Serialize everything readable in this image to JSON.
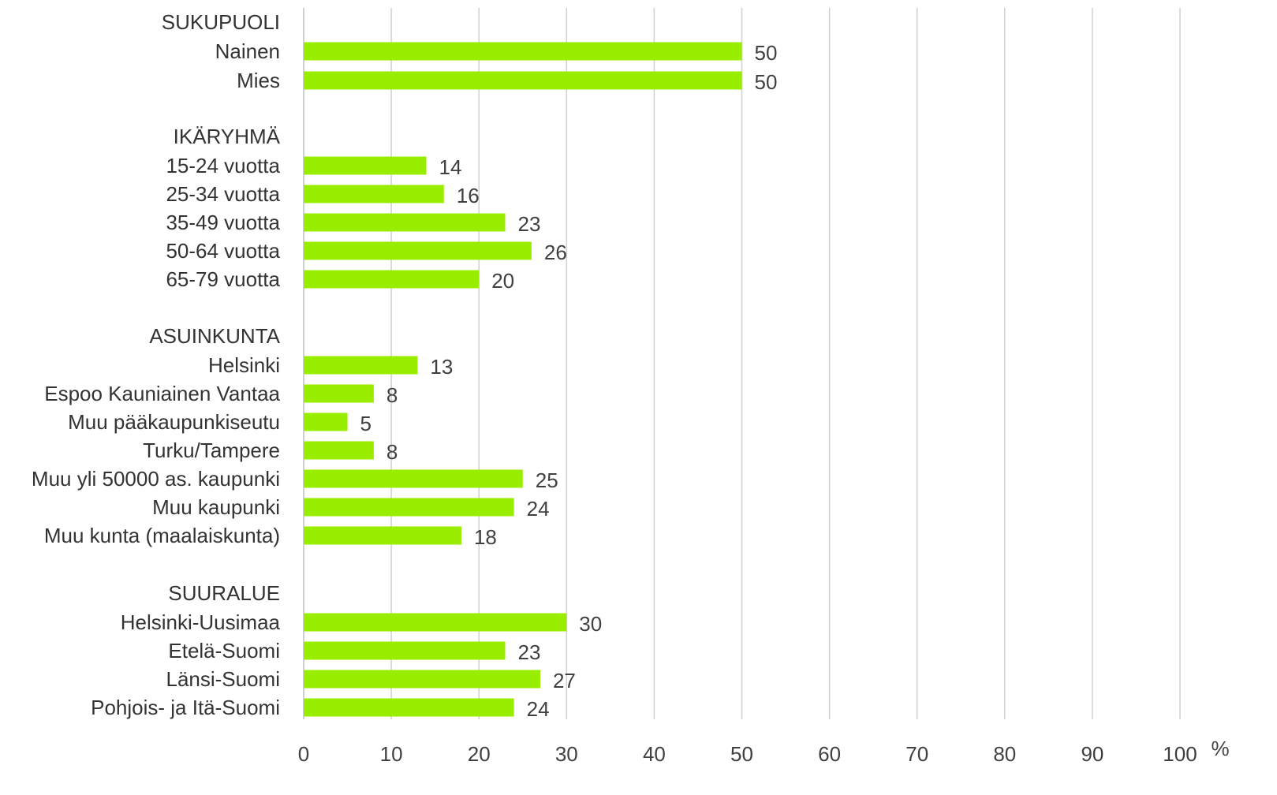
{
  "chart_data": {
    "type": "bar",
    "orientation": "horizontal",
    "unit": "%",
    "xlim": [
      0,
      100
    ],
    "x_ticks": [
      "0",
      "10",
      "20",
      "30",
      "40",
      "50",
      "60",
      "70",
      "80",
      "90",
      "100"
    ],
    "bar_color": "#99ee00",
    "grid": true,
    "groups": [
      {
        "name": "SUKUPUOLI",
        "rows": [
          {
            "label": "Nainen",
            "value": 50
          },
          {
            "label": "Mies",
            "value": 50
          }
        ]
      },
      {
        "name": "IKÄRYHMÄ",
        "rows": [
          {
            "label": "15-24 vuotta",
            "value": 14
          },
          {
            "label": "25-34 vuotta",
            "value": 16
          },
          {
            "label": "35-49 vuotta",
            "value": 23
          },
          {
            "label": "50-64 vuotta",
            "value": 26
          },
          {
            "label": "65-79 vuotta",
            "value": 20
          }
        ]
      },
      {
        "name": "ASUINKUNTA",
        "rows": [
          {
            "label": "Helsinki",
            "value": 13
          },
          {
            "label": "Espoo Kauniainen Vantaa",
            "value": 8
          },
          {
            "label": "Muu pääkaupunkiseutu",
            "value": 5
          },
          {
            "label": "Turku/Tampere",
            "value": 8
          },
          {
            "label": "Muu yli 50000 as. kaupunki",
            "value": 25
          },
          {
            "label": "Muu kaupunki",
            "value": 24
          },
          {
            "label": "Muu kunta (maalaiskunta)",
            "value": 18
          }
        ]
      },
      {
        "name": "SUURALUE",
        "rows": [
          {
            "label": "Helsinki-Uusimaa",
            "value": 30
          },
          {
            "label": "Etelä-Suomi",
            "value": 23
          },
          {
            "label": "Länsi-Suomi",
            "value": 27
          },
          {
            "label": "Pohjois- ja Itä-Suomi",
            "value": 24
          }
        ]
      }
    ]
  }
}
